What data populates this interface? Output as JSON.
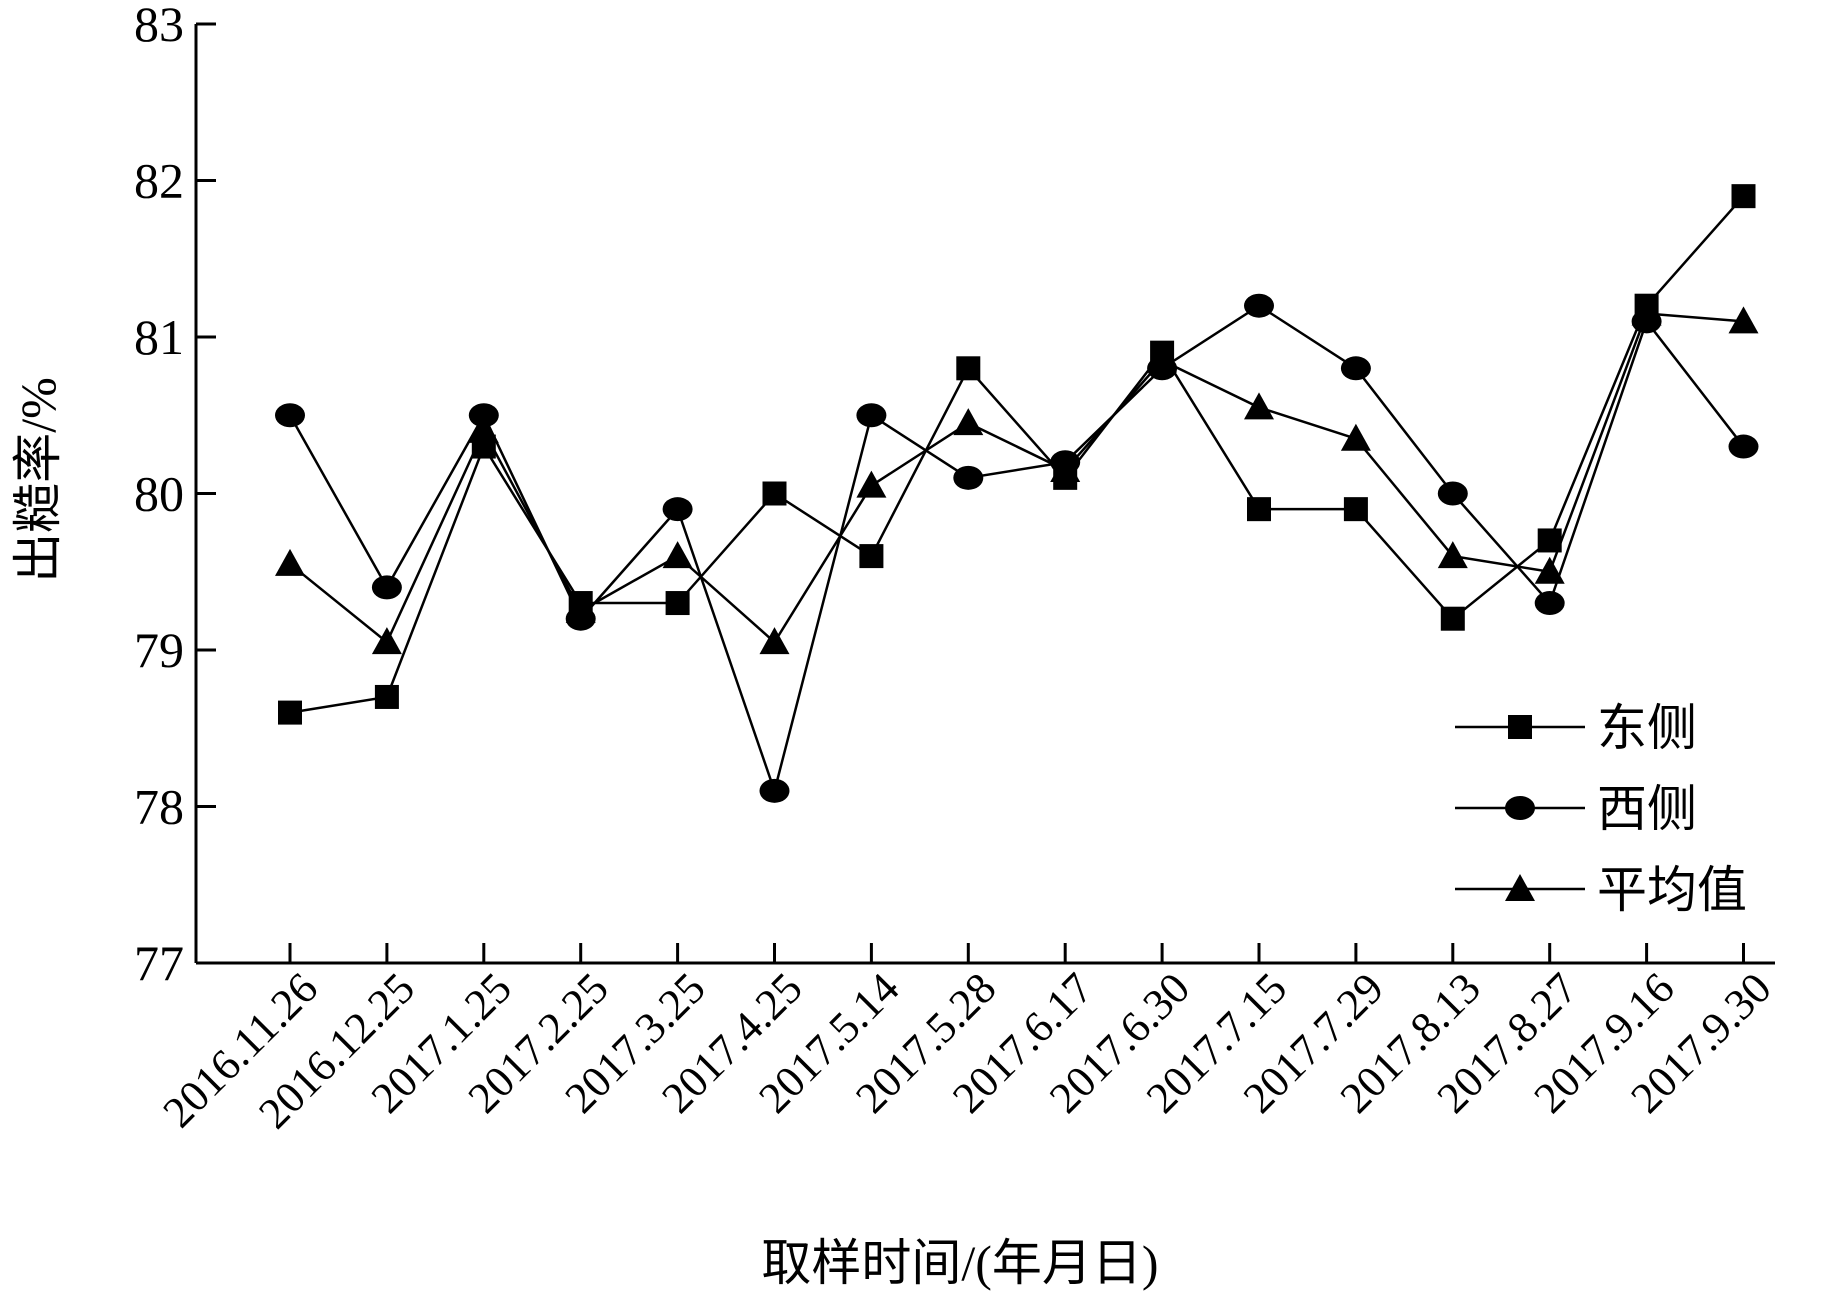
{
  "chart_data": {
    "type": "line",
    "xlabel": "取样时间/(年月日)",
    "ylabel": "出糙率/%",
    "ylim": [
      77,
      83
    ],
    "yticks": [
      77,
      78,
      79,
      80,
      81,
      82,
      83
    ],
    "categories": [
      "2016.11.26",
      "2016.12.25",
      "2017.1.25",
      "2017.2.25",
      "2017.3.25",
      "2017.4.25",
      "2017.5.14",
      "2017.5.28",
      "2017.6.17",
      "2017.6.30",
      "2017.7.15",
      "2017.7.29",
      "2017.8.13",
      "2017.8.27",
      "2017.9.16",
      "2017.9.30"
    ],
    "grid": false,
    "legend_position": "bottom-right",
    "series": [
      {
        "name": "东侧",
        "marker": "square",
        "color": "#000000",
        "values": [
          78.6,
          78.7,
          80.3,
          79.3,
          79.3,
          80.0,
          79.6,
          80.8,
          80.1,
          80.9,
          79.9,
          79.9,
          79.2,
          79.7,
          81.2,
          81.9
        ]
      },
      {
        "name": "西侧",
        "marker": "circle",
        "color": "#000000",
        "values": [
          80.5,
          79.4,
          80.5,
          79.2,
          79.9,
          78.1,
          80.5,
          80.1,
          80.2,
          80.8,
          81.2,
          80.8,
          80.0,
          79.3,
          81.1,
          80.3
        ]
      },
      {
        "name": "平均值",
        "marker": "triangle",
        "color": "#000000",
        "values": [
          79.55,
          79.05,
          80.4,
          79.25,
          79.6,
          79.05,
          80.05,
          80.45,
          80.15,
          80.85,
          80.55,
          80.35,
          79.6,
          79.5,
          81.15,
          81.1
        ]
      }
    ]
  }
}
